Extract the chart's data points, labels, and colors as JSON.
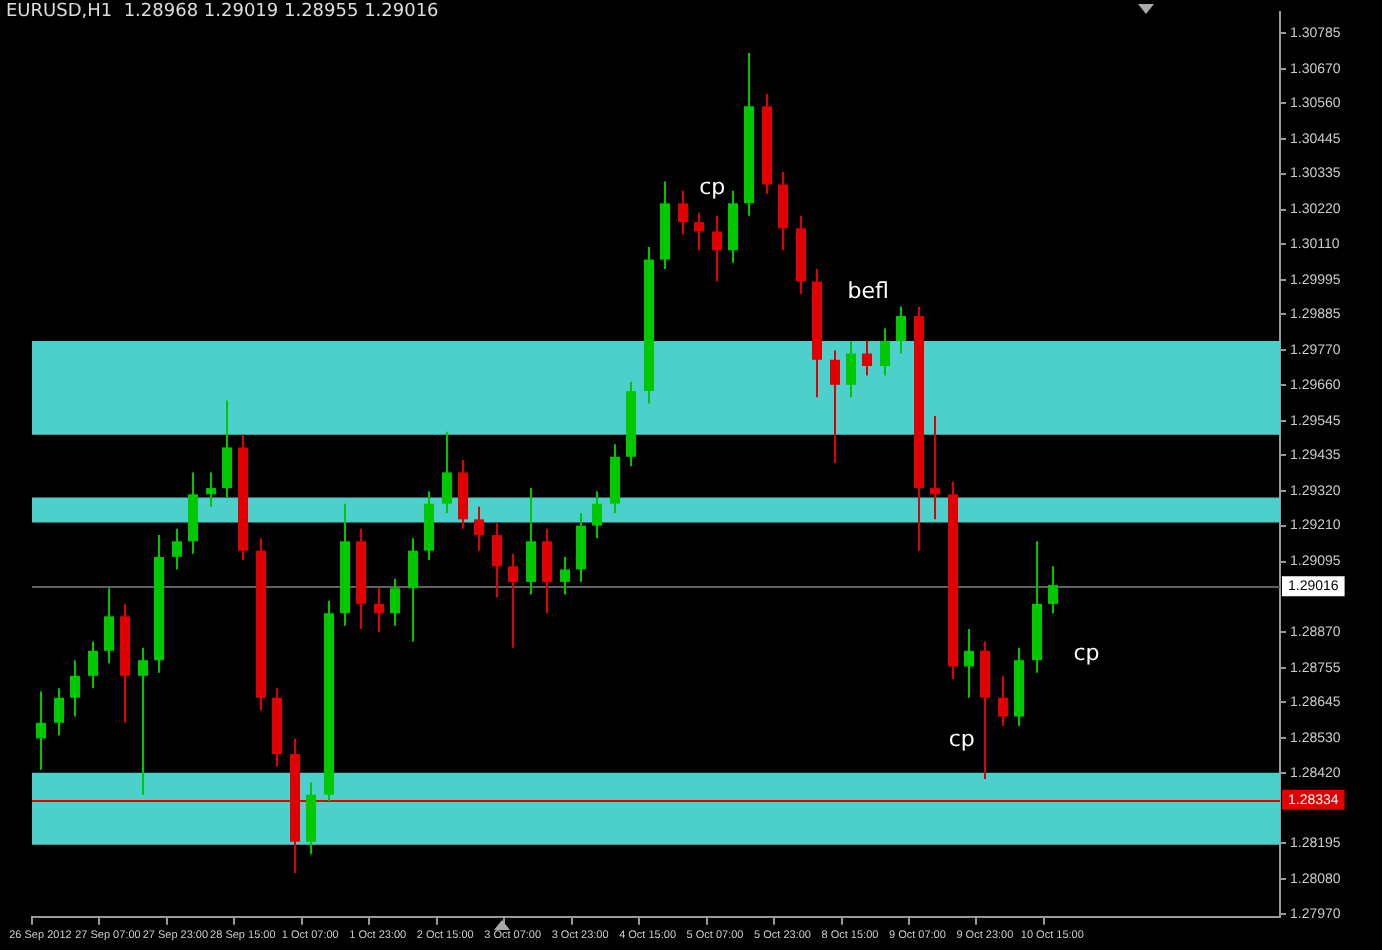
{
  "chart_data": {
    "type": "candlestick",
    "title": "EURUSD,H1  1.28968 1.29019 1.28955 1.29016",
    "categories": [
      "26 Sep 2012",
      null,
      null,
      null,
      "27 Sep 07:00",
      null,
      null,
      null,
      "27 Sep 23:00",
      null,
      null,
      null,
      "28 Sep 15:00",
      null,
      null,
      null,
      "1 Oct 07:00",
      null,
      null,
      null,
      "1 Oct 23:00",
      null,
      null,
      null,
      "2 Oct 15:00",
      null,
      null,
      null,
      "3 Oct 07:00",
      null,
      null,
      null,
      "3 Oct 23:00",
      null,
      null,
      null,
      "4 Oct 15:00",
      null,
      null,
      null,
      "5 Oct 07:00",
      null,
      null,
      null,
      "5 Oct 23:00",
      null,
      null,
      null,
      "8 Oct 15:00",
      null,
      null,
      null,
      "9 Oct 07:00",
      null,
      null,
      null,
      "9 Oct 23:00",
      null,
      null,
      null,
      "10 Oct 15:00",
      null,
      null,
      null,
      null,
      null,
      null,
      null,
      null,
      null,
      null,
      null,
      null,
      null
    ],
    "ohlc": [
      [
        1.2853,
        1.2868,
        1.2843,
        1.2858
      ],
      [
        1.2858,
        1.2869,
        1.2854,
        1.2866
      ],
      [
        1.2866,
        1.2878,
        1.286,
        1.2873
      ],
      [
        1.2873,
        1.2884,
        1.2869,
        1.2881
      ],
      [
        1.2881,
        1.2901,
        1.2877,
        1.2892
      ],
      [
        1.2892,
        1.2896,
        1.2858,
        1.2873
      ],
      [
        1.2873,
        1.2882,
        1.2835,
        1.2878
      ],
      [
        1.2878,
        1.2918,
        1.2874,
        1.2911
      ],
      [
        1.2911,
        1.292,
        1.2907,
        1.2916
      ],
      [
        1.2916,
        1.2938,
        1.2912,
        1.2931
      ],
      [
        1.2931,
        1.2938,
        1.2927,
        1.2933
      ],
      [
        1.2933,
        1.2961,
        1.293,
        1.2946
      ],
      [
        1.2946,
        1.295,
        1.291,
        1.2913
      ],
      [
        1.2913,
        1.2917,
        1.2862,
        1.2866
      ],
      [
        1.2866,
        1.2869,
        1.2844,
        1.2848
      ],
      [
        1.2848,
        1.2853,
        1.281,
        1.282
      ],
      [
        1.282,
        1.2839,
        1.2816,
        1.2835
      ],
      [
        1.2835,
        1.2897,
        1.2833,
        1.2893
      ],
      [
        1.2893,
        1.2928,
        1.2889,
        1.2916
      ],
      [
        1.2916,
        1.292,
        1.2888,
        1.2896
      ],
      [
        1.2896,
        1.2901,
        1.2887,
        1.2893
      ],
      [
        1.2893,
        1.2904,
        1.2889,
        1.2901
      ],
      [
        1.2901,
        1.2917,
        1.2884,
        1.2913
      ],
      [
        1.2913,
        1.2932,
        1.291,
        1.2928
      ],
      [
        1.2928,
        1.2951,
        1.2925,
        1.2938
      ],
      [
        1.2938,
        1.2942,
        1.292,
        1.2923
      ],
      [
        1.2923,
        1.2927,
        1.2913,
        1.2918
      ],
      [
        1.2918,
        1.2922,
        1.2898,
        1.2908
      ],
      [
        1.2908,
        1.2912,
        1.2882,
        1.2903
      ],
      [
        1.2903,
        1.2933,
        1.2899,
        1.2916
      ],
      [
        1.2916,
        1.292,
        1.2893,
        1.2903
      ],
      [
        1.2903,
        1.2911,
        1.2899,
        1.2907
      ],
      [
        1.2907,
        1.2925,
        1.2903,
        1.2921
      ],
      [
        1.2921,
        1.2932,
        1.2917,
        1.2928
      ],
      [
        1.2928,
        1.2947,
        1.2925,
        1.2943
      ],
      [
        1.2943,
        1.2967,
        1.294,
        1.2964
      ],
      [
        1.2964,
        1.301,
        1.296,
        1.3006
      ],
      [
        1.3006,
        1.3031,
        1.3003,
        1.3024
      ],
      [
        1.3024,
        1.3028,
        1.3014,
        1.3018
      ],
      [
        1.3018,
        1.3021,
        1.3009,
        1.3015
      ],
      [
        1.3015,
        1.302,
        1.2999,
        1.3009
      ],
      [
        1.3009,
        1.3028,
        1.3005,
        1.3024
      ],
      [
        1.3024,
        1.3072,
        1.302,
        1.3055
      ],
      [
        1.3055,
        1.3059,
        1.3027,
        1.303
      ],
      [
        1.303,
        1.3034,
        1.3009,
        1.3016
      ],
      [
        1.3016,
        1.302,
        1.2995,
        1.2999
      ],
      [
        1.2999,
        1.3003,
        1.2962,
        1.2974
      ],
      [
        1.2974,
        1.2977,
        1.2941,
        1.2966
      ],
      [
        1.2966,
        1.298,
        1.2962,
        1.2976
      ],
      [
        1.2976,
        1.298,
        1.2969,
        1.2972
      ],
      [
        1.2972,
        1.2984,
        1.2969,
        1.298
      ],
      [
        1.298,
        1.2991,
        1.2976,
        1.2988
      ],
      [
        1.2988,
        1.2991,
        1.2913,
        1.2933
      ],
      [
        1.2933,
        1.2956,
        1.2923,
        1.2931
      ],
      [
        1.2931,
        1.2935,
        1.2872,
        1.2876
      ],
      [
        1.2876,
        1.2888,
        1.2866,
        1.2881
      ],
      [
        1.2881,
        1.2884,
        1.284,
        1.2866
      ],
      [
        1.2866,
        1.2873,
        1.2857,
        1.286
      ],
      [
        1.286,
        1.2882,
        1.2857,
        1.2878
      ],
      [
        1.2878,
        1.2916,
        1.2874,
        1.2896
      ],
      [
        1.2896,
        1.2908,
        1.2893,
        1.2902
      ],
      null,
      null,
      null,
      null,
      null,
      null,
      null,
      null,
      null,
      null,
      null,
      null,
      null
    ],
    "colors": [
      "#00c800",
      "#00c800",
      "#00c800",
      "#00c800",
      "#00c800",
      "#e00000",
      "#00c800",
      "#00c800",
      "#00c800",
      "#00c800",
      "#00c800",
      "#00c800",
      "#e00000",
      "#e00000",
      "#e00000",
      "#e00000",
      "#00c800",
      "#00c800",
      "#00c800",
      "#e00000",
      "#e00000",
      "#00c800",
      "#00c800",
      "#00c800",
      "#00c800",
      "#e00000",
      "#e00000",
      "#e00000",
      "#e00000",
      "#00c800",
      "#e00000",
      "#00c800",
      "#00c800",
      "#00c800",
      "#00c800",
      "#00c800",
      "#00c800",
      "#00c800",
      "#e00000",
      "#e00000",
      "#e00000",
      "#00c800",
      "#00c800",
      "#e00000",
      "#e00000",
      "#e00000",
      "#e00000",
      "#e00000",
      "#00c800",
      "#e00000",
      "#00c800",
      "#00c800",
      "#e00000",
      "#e00000",
      "#e00000",
      "#00c800",
      "#e00000",
      "#e00000",
      "#00c800",
      "#00c800",
      "#00c800",
      null,
      null,
      null,
      null,
      null,
      null,
      null,
      null,
      null,
      null,
      null,
      null,
      null
    ],
    "ylim": [
      1.2796,
      1.3085
    ],
    "yticks": [
      1.30785,
      {
        "value": 1.3067,
        "label": "1.30670"
      },
      {
        "value": 1.3056,
        "label": "1.30560"
      },
      1.30445,
      1.30335,
      {
        "value": 1.3022,
        "label": "1.30220"
      },
      {
        "value": 1.3011,
        "label": "1.30110"
      },
      1.29995,
      1.29885,
      {
        "value": 1.2977,
        "label": "1.29770"
      },
      {
        "value": 1.2966,
        "label": "1.29660"
      },
      1.29545,
      1.29435,
      {
        "value": 1.2932,
        "label": "1.29320"
      },
      {
        "value": 1.2921,
        "label": "1.29210"
      },
      1.29095,
      {
        "value": 1.2887,
        "label": "1.28870"
      },
      1.28755,
      1.28645,
      {
        "value": 1.2853,
        "label": "1.28530"
      },
      {
        "value": 1.2842,
        "label": "1.28420"
      },
      1.28195,
      {
        "value": 1.2808,
        "label": "1.28080"
      },
      {
        "value": 1.2797,
        "label": "1.27970"
      }
    ],
    "bands": [
      {
        "axis": "y",
        "from": 1.295,
        "to": 1.298,
        "color": "#4dd0cc"
      },
      {
        "axis": "y",
        "from": 1.2922,
        "to": 1.293,
        "color": "#4dd0cc"
      },
      {
        "axis": "y",
        "from": 1.2819,
        "to": 1.2842,
        "color": "#4dd0cc"
      }
    ],
    "ref_lines": [
      {
        "axis": "y",
        "value": 1.29016,
        "label": "1.29016",
        "color": "#606060"
      },
      {
        "axis": "y",
        "value": 1.28334,
        "label": "1.28334",
        "color": "#e00000"
      }
    ],
    "annotations": [
      "cp",
      "befl",
      "cp",
      "cp"
    ]
  }
}
